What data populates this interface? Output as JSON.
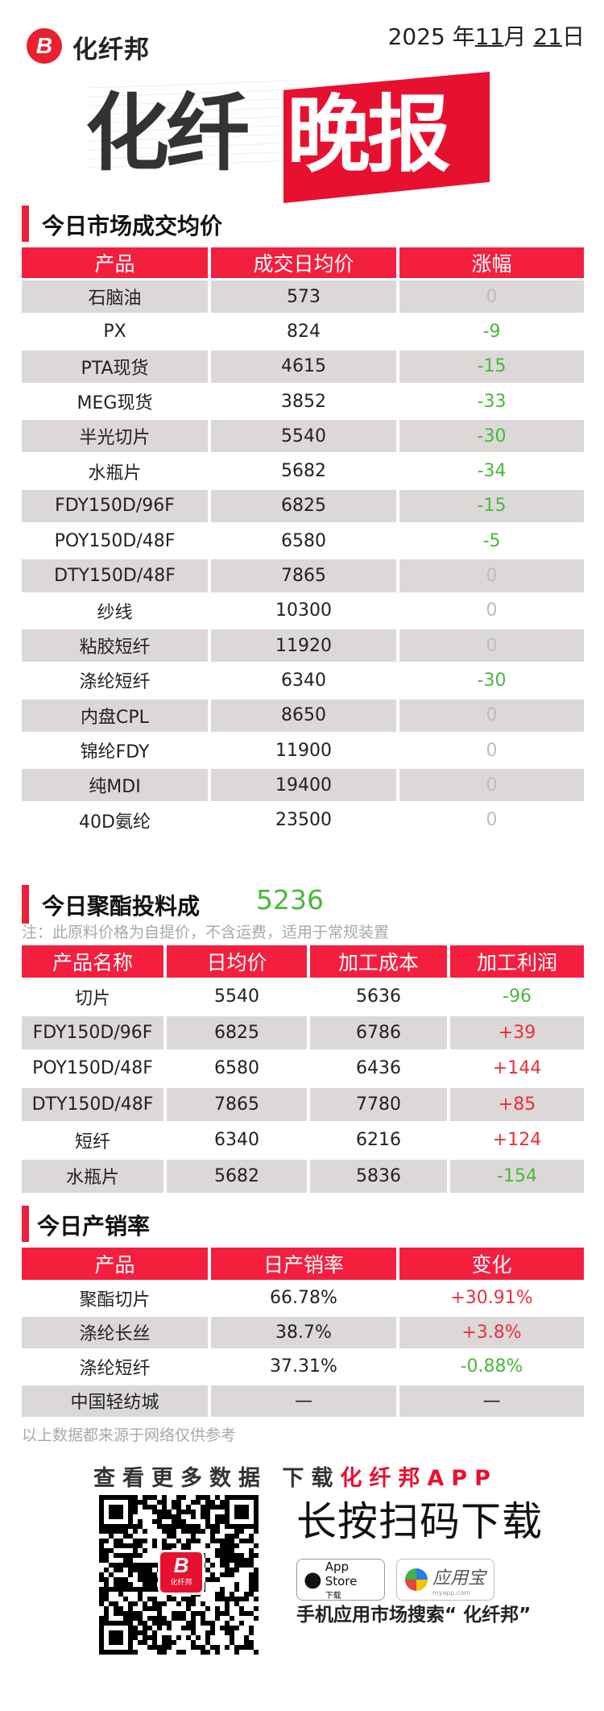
{
  "header": {
    "logo_mark": "B",
    "brand": "化纤邦",
    "date": {
      "year": "2025",
      "year_unit": "年",
      "month": "11",
      "month_unit": "月",
      "day": "21",
      "day_unit": "日"
    },
    "title_dark": "化纤",
    "title_red": "晚报"
  },
  "colors": {
    "accent": "#f41f3f",
    "down": "#49b83a",
    "up": "#e8313a",
    "flat": "#bdbdbd",
    "stripe": "#dcd8d7"
  },
  "market": {
    "title": "今日市场成交均价",
    "columns": [
      "产品",
      "成交日均价",
      "涨幅"
    ],
    "rows": [
      [
        "石脑油",
        "573",
        "0"
      ],
      [
        "PX",
        "824",
        "-9"
      ],
      [
        "PTA现货",
        "4615",
        "-15"
      ],
      [
        "MEG现货",
        "3852",
        "-33"
      ],
      [
        "半光切片",
        "5540",
        "-30"
      ],
      [
        "水瓶片",
        "5682",
        "-34"
      ],
      [
        "FDY150D/96F",
        "6825",
        "-15"
      ],
      [
        "POY150D/48F",
        "6580",
        "-5"
      ],
      [
        "DTY150D/48F",
        "7865",
        "0"
      ],
      [
        "纱线",
        "10300",
        "0"
      ],
      [
        "粘胶短纤",
        "11920",
        "0"
      ],
      [
        "涤纶短纤",
        "6340",
        "-30"
      ],
      [
        "内盘CPL",
        "8650",
        "0"
      ],
      [
        "锦纶FDY",
        "11900",
        "0"
      ],
      [
        "纯MDI",
        "19400",
        "0"
      ],
      [
        "40D氨纶",
        "23500",
        "0"
      ]
    ]
  },
  "polyester": {
    "title": "今日聚酯投料成",
    "value": "5236",
    "note": "注：此原料价格为自提价，不含运费，适用于常规装置",
    "columns": [
      "产品名称",
      "日均价",
      "加工成本",
      "加工利润"
    ],
    "rows": [
      [
        "切片",
        "5540",
        "5636",
        "-96"
      ],
      [
        "FDY150D/96F",
        "6825",
        "6786",
        "+39"
      ],
      [
        "POY150D/48F",
        "6580",
        "6436",
        "+144"
      ],
      [
        "DTY150D/48F",
        "7865",
        "7780",
        "+85"
      ],
      [
        "短纤",
        "6340",
        "6216",
        "+124"
      ],
      [
        "水瓶片",
        "5682",
        "5836",
        "-154"
      ]
    ]
  },
  "sales": {
    "title": "今日产销率",
    "columns": [
      "产品",
      "日产销率",
      "变化"
    ],
    "rows": [
      [
        "聚酯切片",
        "66.78%",
        "+30.91%"
      ],
      [
        "涤纶长丝",
        "38.7%",
        "+3.8%"
      ],
      [
        "涤纶短纤",
        "37.31%",
        "-0.88%"
      ],
      [
        "中国轻纺城",
        "—",
        "—"
      ]
    ],
    "disclaimer": "以上数据都来源于网络仅供参考"
  },
  "footer": {
    "promo_dark": "查看更多数据 下载",
    "promo_red": "化纤邦APP",
    "long_press": "长按扫码下载",
    "qr_logo": "B",
    "qr_logo_caption": "化纤邦",
    "appstore_label": "App Store",
    "appstore_sub": "下载",
    "yyb_label": "应用宝",
    "yyb_sub": "myapp.com",
    "search_hint": "手机应用市场搜索“ 化纤邦”"
  }
}
